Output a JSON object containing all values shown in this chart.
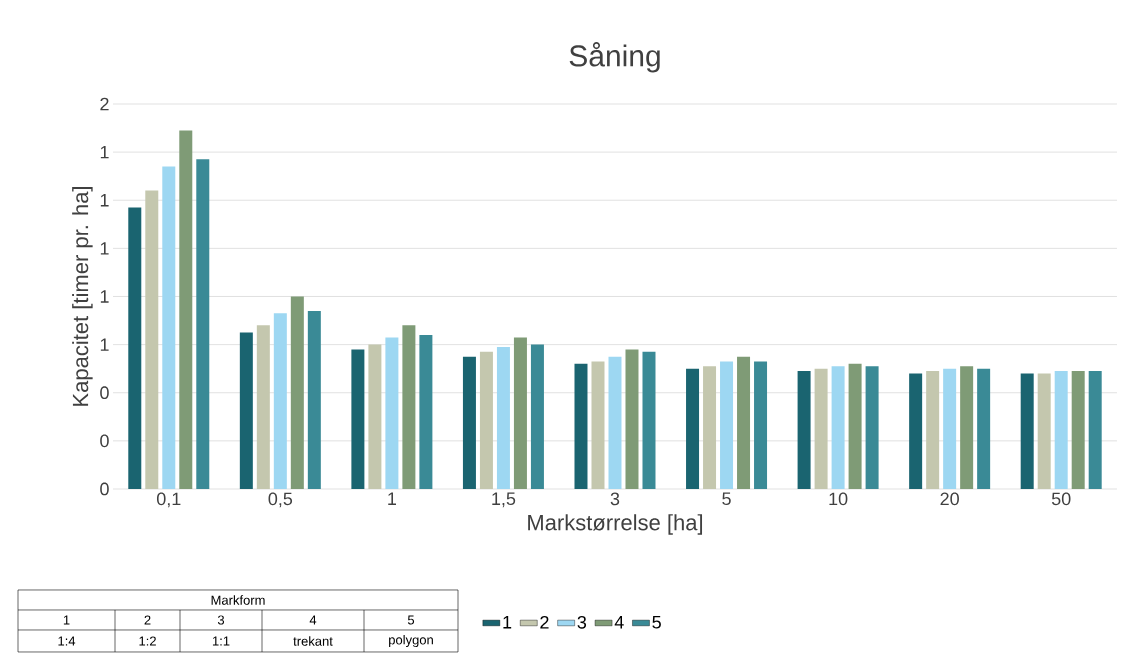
{
  "chart_data": {
    "type": "bar",
    "title": "Såning",
    "xlabel": "Markstørrelse [ha]",
    "ylabel": "Kapacitet [timer pr. ha]",
    "categories": [
      "0,1",
      "0,5",
      "1",
      "1,5",
      "3",
      "5",
      "10",
      "20",
      "50"
    ],
    "series": [
      {
        "name": "1",
        "color": "#1a6470",
        "values": [
          1.17,
          0.65,
          0.58,
          0.55,
          0.52,
          0.5,
          0.49,
          0.48,
          0.48
        ]
      },
      {
        "name": "2",
        "color": "#c4c7ae",
        "values": [
          1.24,
          0.68,
          0.6,
          0.57,
          0.53,
          0.51,
          0.5,
          0.49,
          0.48
        ]
      },
      {
        "name": "3",
        "color": "#9dd7f2",
        "values": [
          1.34,
          0.73,
          0.63,
          0.59,
          0.55,
          0.53,
          0.51,
          0.5,
          0.49
        ]
      },
      {
        "name": "4",
        "color": "#7f9b76",
        "values": [
          1.49,
          0.8,
          0.68,
          0.63,
          0.58,
          0.55,
          0.52,
          0.51,
          0.49
        ]
      },
      {
        "name": "5",
        "color": "#3a8a96",
        "values": [
          1.37,
          0.74,
          0.64,
          0.6,
          0.57,
          0.53,
          0.51,
          0.5,
          0.49
        ]
      }
    ],
    "ylim": [
      0,
      1.6
    ],
    "yticks": [
      0,
      {
        "value": 0.2,
        "label": "0"
      },
      {
        "value": 0.4,
        "label": "0"
      },
      {
        "value": 0.6,
        "label": "1"
      },
      {
        "value": 0.8,
        "label": "1"
      },
      {
        "value": 1.0,
        "label": "1"
      },
      {
        "value": 1.2,
        "label": "1"
      },
      {
        "value": 1.4,
        "label": "1"
      },
      {
        "value": 1.6,
        "label": "2"
      }
    ],
    "grid": "y",
    "legend": "bottom",
    "annotations": [
      "Markform",
      "1",
      "2",
      "3",
      "4",
      "5",
      "1:4",
      "1:2",
      "1:1",
      "trekant",
      "polygon"
    ]
  }
}
